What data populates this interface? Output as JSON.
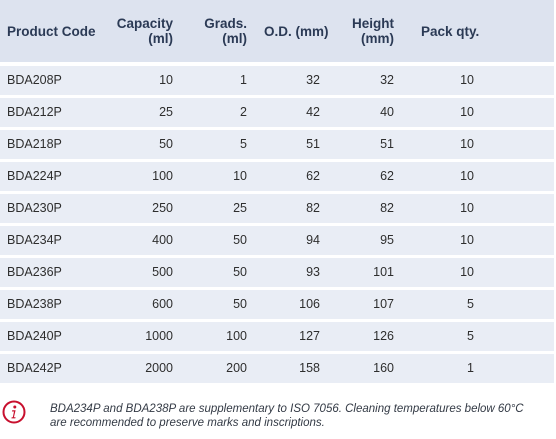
{
  "table": {
    "headers": {
      "code": "Product Code",
      "capacity_line1": "Capacity",
      "capacity_line2": "(ml)",
      "grads_line1": "Grads.",
      "grads_line2": "(ml)",
      "od": "O.D. (mm)",
      "height_line1": "Height",
      "height_line2": "(mm)",
      "pack": "Pack qty."
    },
    "rows": [
      {
        "code": "BDA208P",
        "capacity": "10",
        "grads": "1",
        "od": "32",
        "height": "32",
        "pack": "10"
      },
      {
        "code": "BDA212P",
        "capacity": "25",
        "grads": "2",
        "od": "42",
        "height": "40",
        "pack": "10"
      },
      {
        "code": "BDA218P",
        "capacity": "50",
        "grads": "5",
        "od": "51",
        "height": "51",
        "pack": "10"
      },
      {
        "code": "BDA224P",
        "capacity": "100",
        "grads": "10",
        "od": "62",
        "height": "62",
        "pack": "10"
      },
      {
        "code": "BDA230P",
        "capacity": "250",
        "grads": "25",
        "od": "82",
        "height": "82",
        "pack": "10"
      },
      {
        "code": "BDA234P",
        "capacity": "400",
        "grads": "50",
        "od": "94",
        "height": "95",
        "pack": "10"
      },
      {
        "code": "BDA236P",
        "capacity": "500",
        "grads": "50",
        "od": "93",
        "height": "101",
        "pack": "10"
      },
      {
        "code": "BDA238P",
        "capacity": "600",
        "grads": "50",
        "od": "106",
        "height": "107",
        "pack": "5"
      },
      {
        "code": "BDA240P",
        "capacity": "1000",
        "grads": "100",
        "od": "127",
        "height": "126",
        "pack": "5"
      },
      {
        "code": "BDA242P",
        "capacity": "2000",
        "grads": "200",
        "od": "158",
        "height": "160",
        "pack": "1"
      }
    ]
  },
  "note": {
    "icon": "info-icon",
    "icon_color": "#c8102e",
    "line1": "BDA234P and BDA238P are supplementary to ISO 7056. Cleaning temperatures below 60°C",
    "line2": "are recommended to preserve marks and inscriptions."
  },
  "colors": {
    "header_bg": "#dde3ef",
    "row_bg": "#e9edf5",
    "header_text": "#2b3a55"
  }
}
